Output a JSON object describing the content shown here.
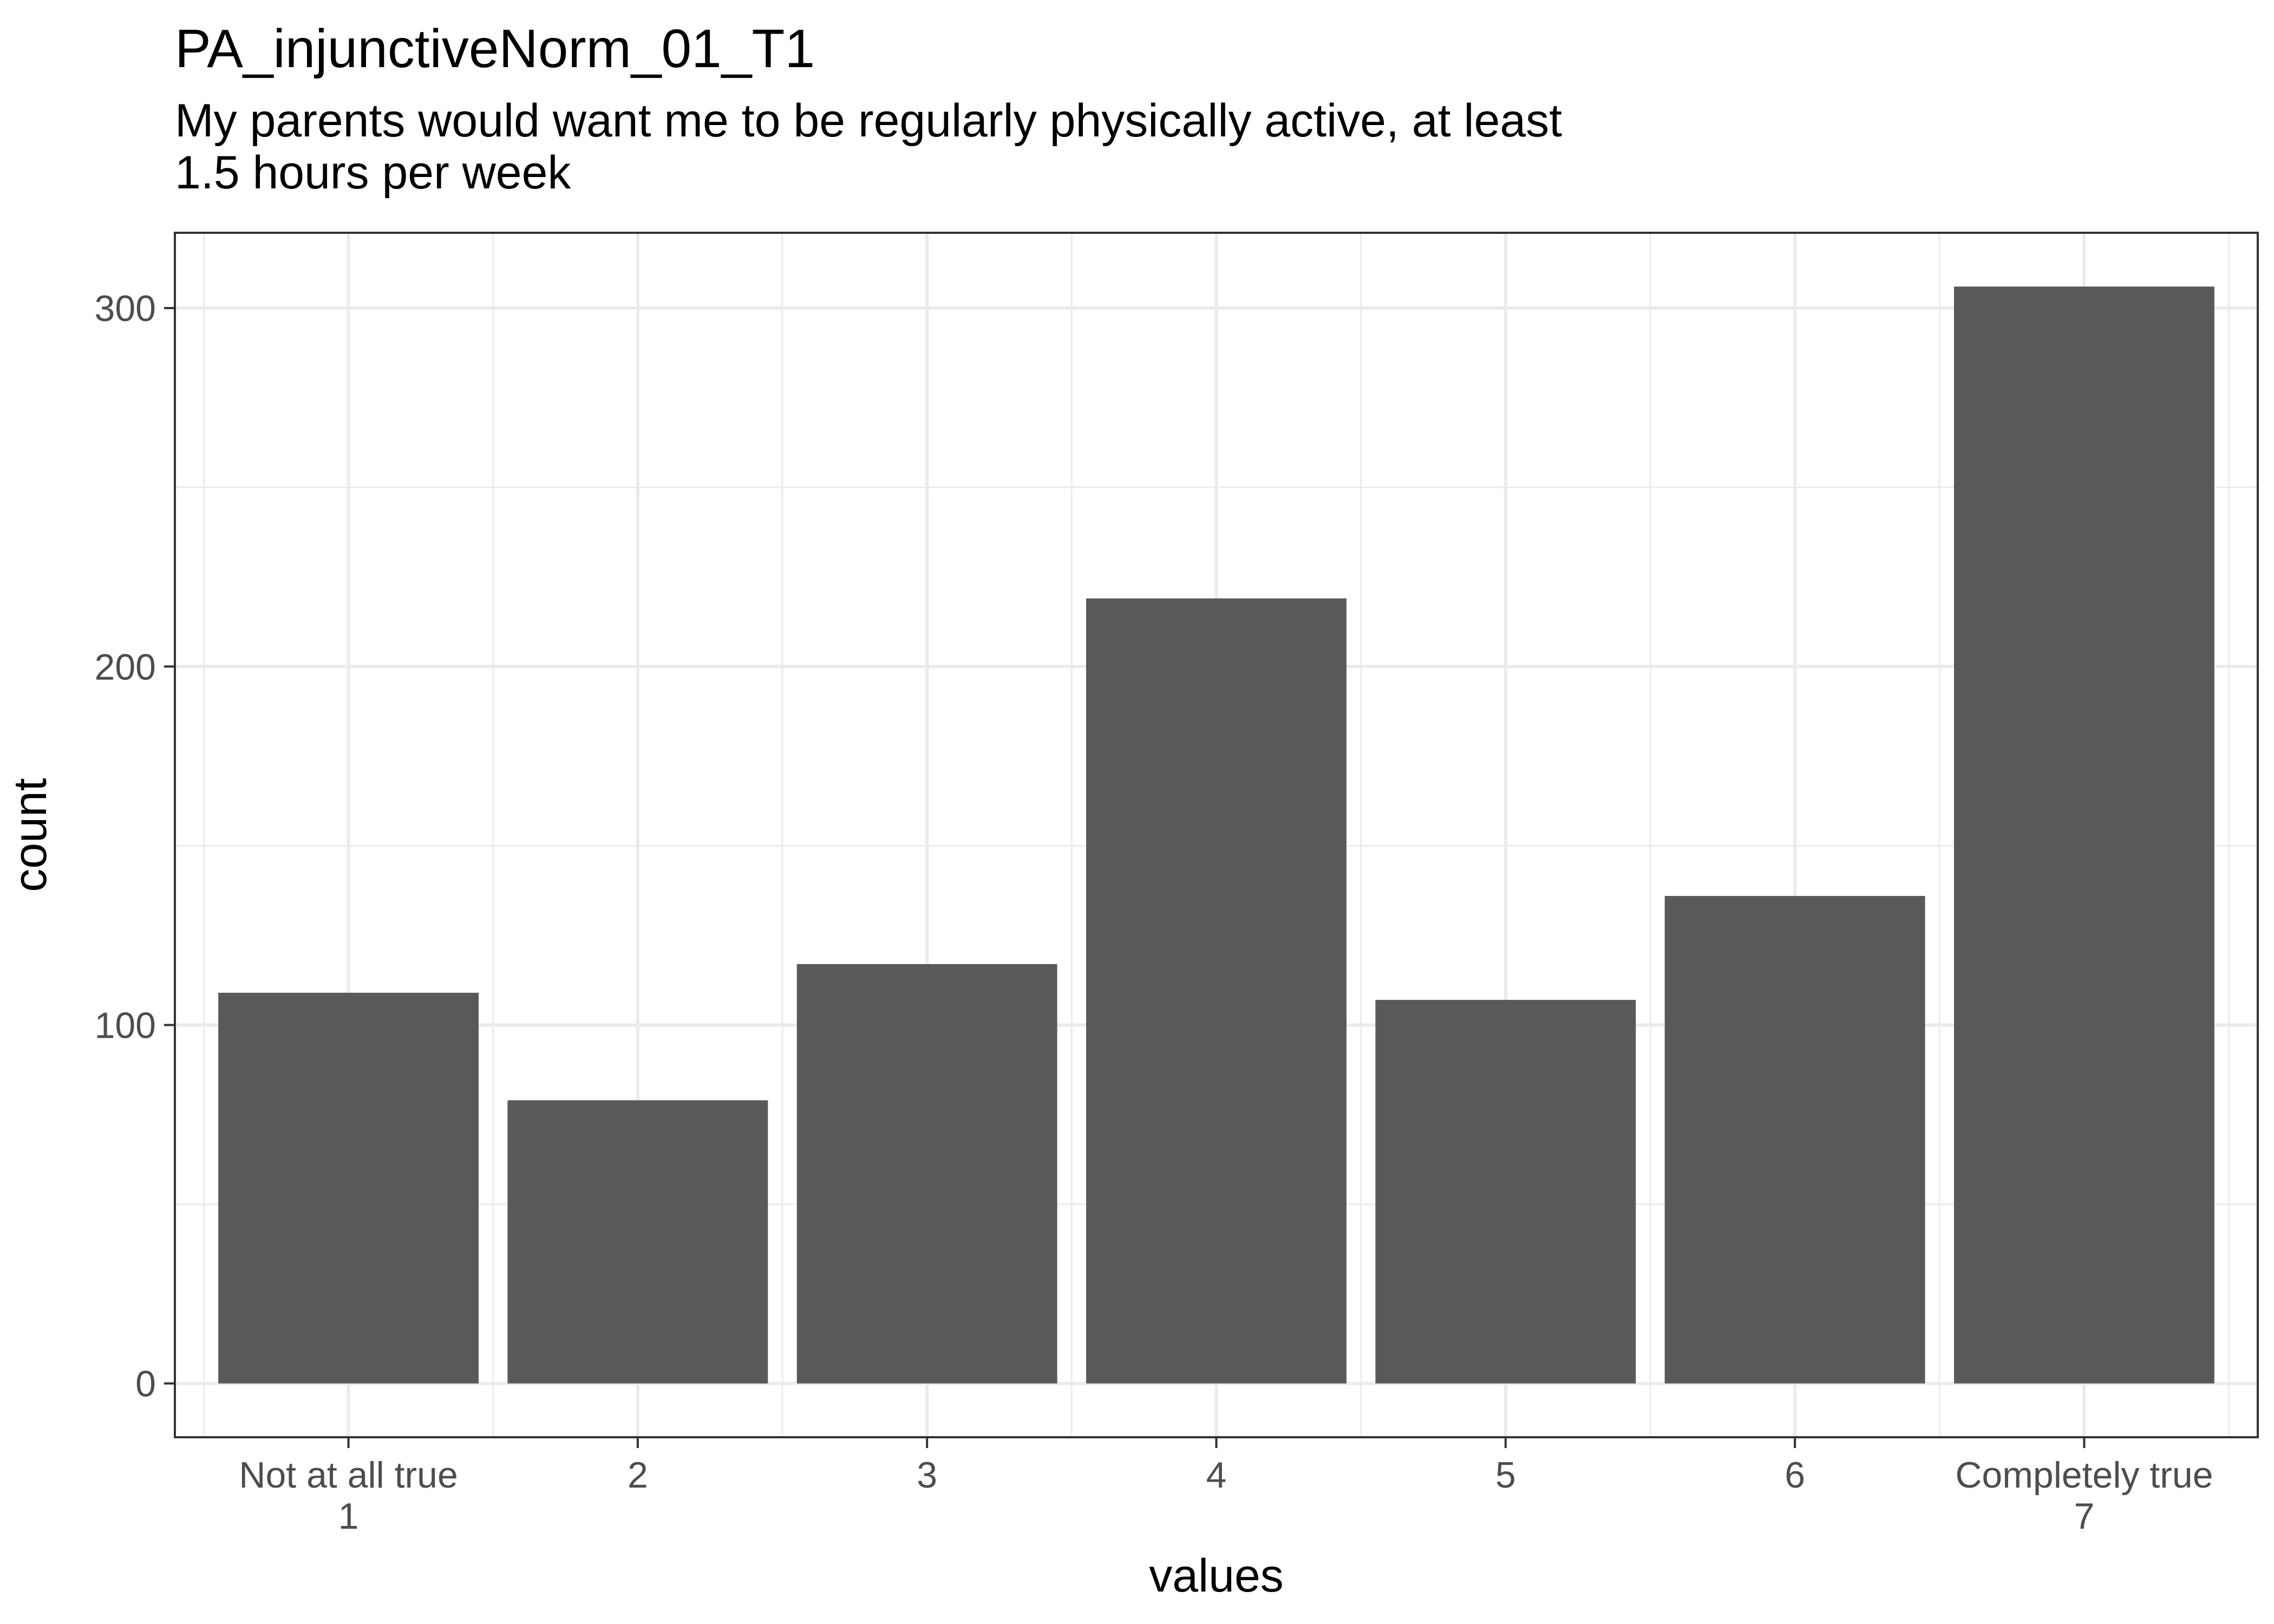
{
  "chart_data": {
    "type": "bar",
    "title": "PA_injunctiveNorm_01_T1",
    "subtitle_lines": [
      "My parents would want me to be regularly physically active, at least",
      "1.5 hours per week"
    ],
    "xlabel": "values",
    "ylabel": "count",
    "categories": [
      [
        "Not at all true",
        "1"
      ],
      [
        "2"
      ],
      [
        "3"
      ],
      [
        "4"
      ],
      [
        "5"
      ],
      [
        "6"
      ],
      [
        "Completely true",
        "7"
      ]
    ],
    "values": [
      109,
      79,
      117,
      219,
      107,
      136,
      306
    ],
    "ylim": [
      -15,
      321
    ],
    "yticks": [
      0,
      100,
      200,
      300
    ],
    "grid": true,
    "bar_color": "#595959",
    "grid_color": "#ebebeb",
    "panel_border_color": "#333333",
    "tick_label_color": "#4d4d4d"
  }
}
